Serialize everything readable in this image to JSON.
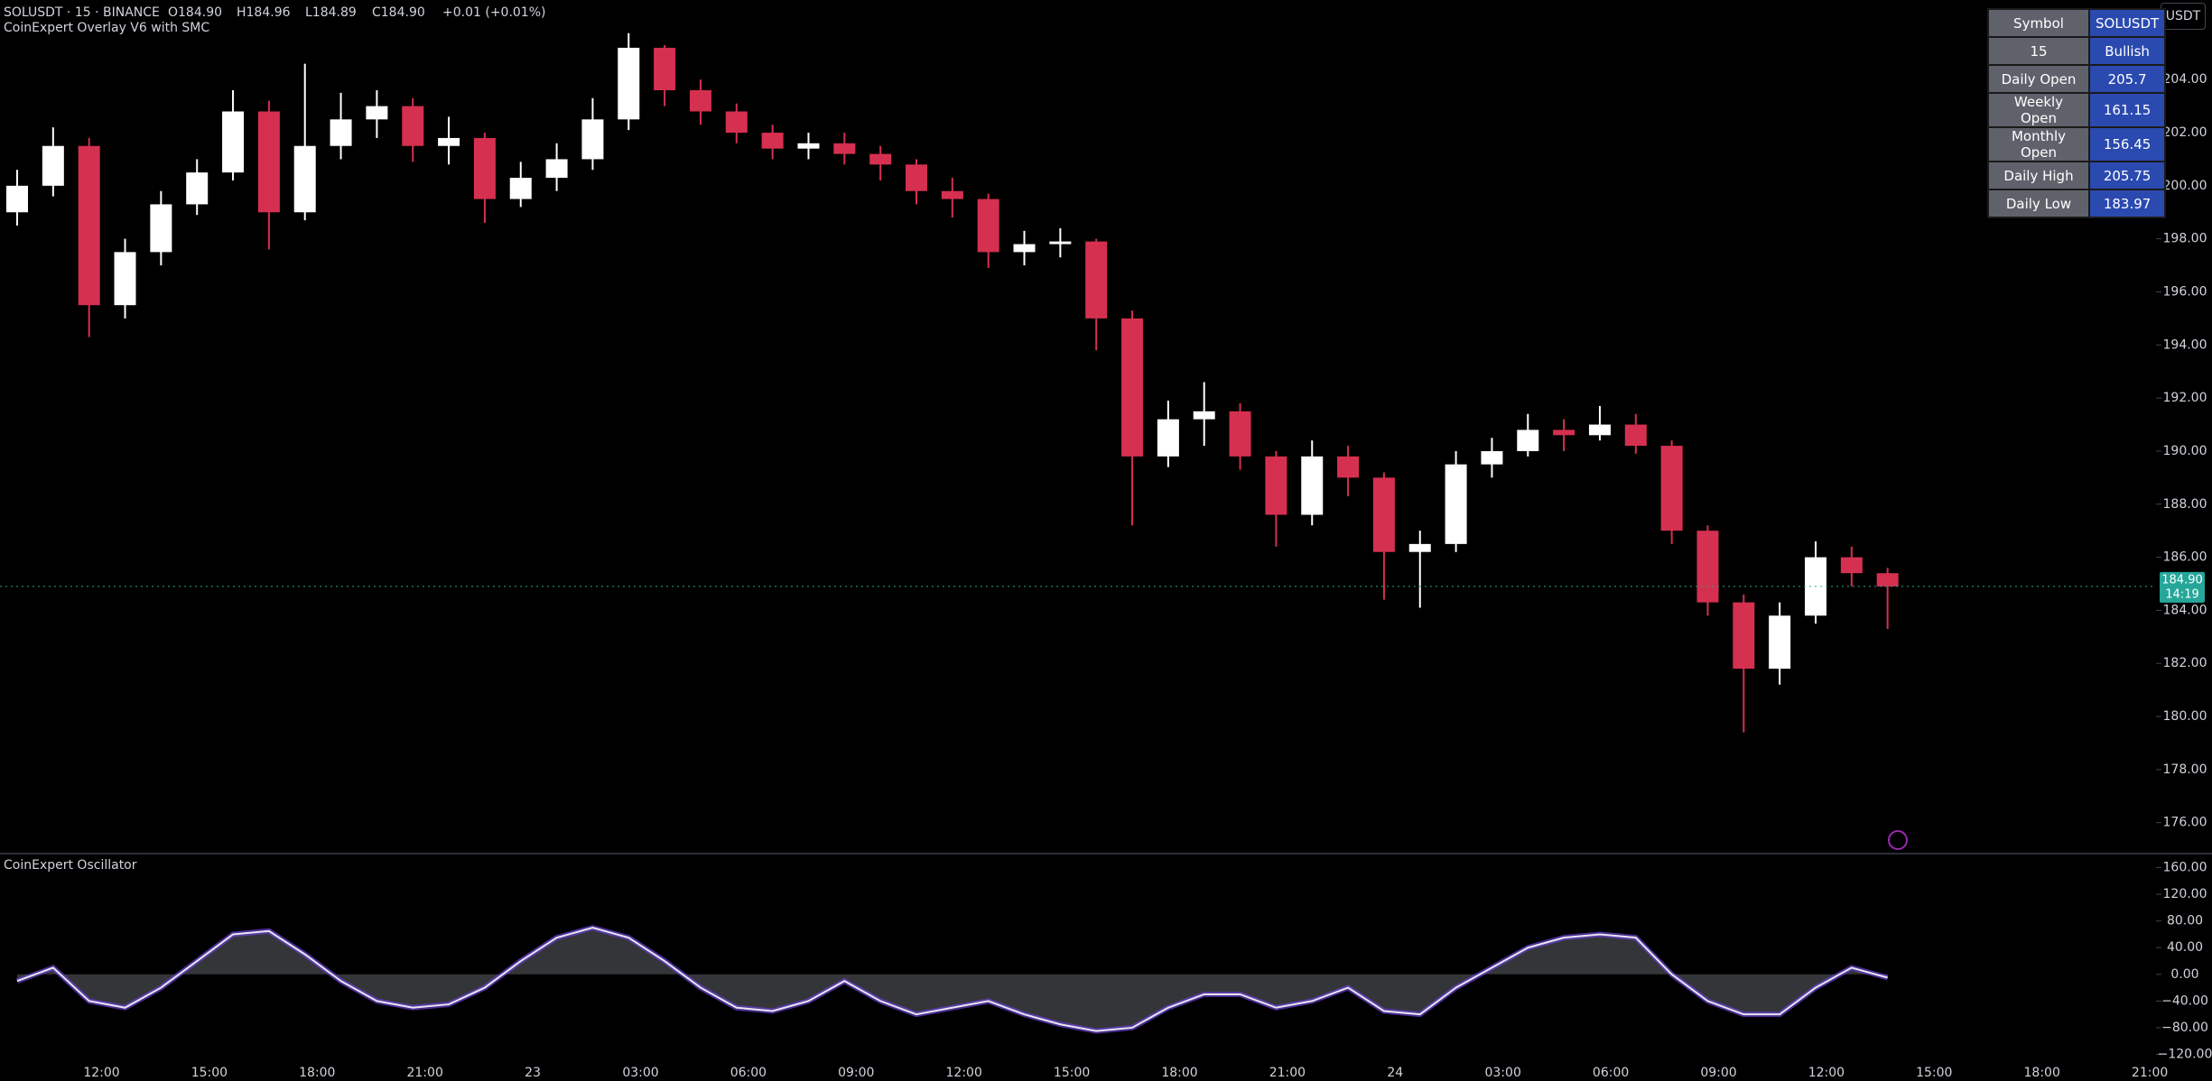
{
  "header": {
    "symbol": "SOLUSDT · 15 · BINANCE",
    "open": "O184.90",
    "high": "H184.96",
    "low": "L184.89",
    "close": "C184.90",
    "change": "+0.01 (+0.01%)",
    "overlay_name": "CoinExpert Overlay V6 with SMC",
    "oscillator_name": "CoinExpert Oscillator",
    "currency_button": "USDT",
    "price_tag": "184.90",
    "countdown": "14:19"
  },
  "table": {
    "rows": [
      [
        "Symbol",
        "SOLUSDT"
      ],
      [
        "15",
        "Bullish"
      ],
      [
        "Daily Open",
        "205.7"
      ],
      [
        "Weekly Open",
        "161.15"
      ],
      [
        "Monthly Open",
        "156.45"
      ],
      [
        "Daily High",
        "205.75"
      ],
      [
        "Daily Low",
        "183.97"
      ]
    ]
  },
  "chart_data": [
    {
      "type": "candlestick",
      "up_color": "#ffffff",
      "down_color": "#d5304f",
      "open": [
        199.0,
        200.0,
        201.5,
        195.5,
        197.5,
        199.3,
        200.5,
        202.8,
        199.0,
        201.5,
        202.5,
        203.0,
        201.5,
        201.8,
        199.5,
        200.3,
        201.0,
        202.5,
        205.2,
        203.6,
        202.8,
        202.0,
        201.4,
        201.6,
        201.2,
        200.8,
        199.8,
        199.5,
        197.5,
        197.8,
        197.9,
        195.0,
        189.8,
        191.2,
        191.5,
        189.8,
        187.6,
        189.8,
        189.0,
        186.2,
        186.5,
        189.5,
        190.0,
        190.8,
        190.6,
        191.0,
        190.2,
        187.0,
        184.3,
        181.8,
        183.8,
        186.0,
        185.4
      ],
      "high": [
        200.6,
        202.2,
        201.8,
        198.0,
        199.8,
        201.0,
        203.6,
        203.2,
        204.6,
        203.5,
        203.6,
        203.3,
        202.6,
        202.0,
        200.9,
        201.6,
        203.3,
        205.75,
        205.3,
        204.0,
        203.1,
        202.3,
        202.0,
        202.0,
        201.5,
        201.0,
        200.3,
        199.7,
        198.3,
        198.4,
        198.0,
        195.3,
        191.9,
        192.6,
        191.8,
        190.0,
        190.4,
        190.2,
        189.2,
        187.0,
        190.0,
        190.5,
        191.4,
        191.2,
        191.7,
        191.4,
        190.4,
        187.2,
        184.6,
        184.3,
        186.6,
        186.4,
        185.6
      ],
      "low": [
        198.5,
        199.6,
        194.3,
        195.0,
        197.0,
        198.9,
        200.2,
        197.6,
        198.7,
        201.0,
        201.8,
        200.9,
        200.8,
        198.6,
        199.2,
        199.8,
        200.6,
        202.1,
        203.0,
        202.3,
        201.6,
        201.0,
        201.0,
        200.8,
        200.2,
        199.3,
        198.8,
        196.9,
        197.0,
        197.3,
        193.8,
        187.2,
        189.4,
        190.2,
        189.3,
        186.4,
        187.2,
        188.3,
        184.4,
        184.1,
        186.2,
        189.0,
        189.8,
        190.0,
        190.4,
        189.9,
        186.5,
        183.8,
        179.4,
        181.2,
        183.5,
        184.9,
        183.3
      ],
      "close": [
        200.0,
        201.5,
        195.5,
        197.5,
        199.3,
        200.5,
        202.8,
        199.0,
        201.5,
        202.5,
        203.0,
        201.5,
        201.8,
        199.5,
        200.3,
        201.0,
        202.5,
        205.2,
        203.6,
        202.8,
        202.0,
        201.4,
        201.6,
        201.2,
        200.8,
        199.8,
        199.5,
        197.5,
        197.8,
        197.9,
        195.0,
        189.8,
        191.2,
        191.5,
        189.8,
        187.6,
        189.8,
        189.0,
        186.2,
        186.5,
        189.5,
        190.0,
        190.8,
        190.6,
        191.0,
        190.2,
        187.0,
        184.3,
        181.8,
        183.8,
        186.0,
        185.4,
        184.9
      ],
      "ylim": [
        174.9,
        207.0
      ],
      "yticks": [
        {
          "value": 176,
          "label": "176.00"
        },
        {
          "value": 178,
          "label": "178.00"
        },
        {
          "value": 180,
          "label": "180.00"
        },
        {
          "value": 182,
          "label": "182.00"
        },
        {
          "value": 184,
          "label": "184.00"
        },
        {
          "value": 186,
          "label": "186.00"
        },
        {
          "value": 188,
          "label": "188.00"
        },
        {
          "value": 190,
          "label": "190.00"
        },
        {
          "value": 192,
          "label": "192.00"
        },
        {
          "value": 194,
          "label": "194.00"
        },
        {
          "value": 196,
          "label": "196.00"
        },
        {
          "value": 198,
          "label": "198.00"
        },
        {
          "value": 200,
          "label": "200.00"
        },
        {
          "value": 202,
          "label": "202.00"
        },
        {
          "value": 204,
          "label": "204.00"
        }
      ],
      "last_price": 184.9,
      "x_labels": [
        "12:00",
        "15:00",
        "18:00",
        "21:00",
        "23",
        "03:00",
        "06:00",
        "09:00",
        "12:00",
        "15:00",
        "18:00",
        "21:00",
        "24",
        "03:00",
        "06:00",
        "09:00",
        "12:00",
        "15:00",
        "18:00",
        "21:00"
      ]
    },
    {
      "type": "line",
      "color": "#e6e6f0",
      "values": [
        -10,
        10,
        -40,
        -50,
        -20,
        20,
        60,
        65,
        30,
        -10,
        -40,
        -50,
        -45,
        -20,
        20,
        55,
        70,
        55,
        20,
        -20,
        -50,
        -55,
        -40,
        -10,
        -40,
        -60,
        -50,
        -40,
        -60,
        -75,
        -85,
        -80,
        -50,
        -30,
        -30,
        -50,
        -40,
        -20,
        -55,
        -60,
        -20,
        10,
        40,
        55,
        60,
        55,
        0,
        -40,
        -60,
        -60,
        -20,
        10,
        -5
      ],
      "ylim": [
        -122,
        181
      ],
      "yticks": [
        {
          "value": 160,
          "label": "160.00"
        },
        {
          "value": 120,
          "label": "120.00"
        },
        {
          "value": 80,
          "label": "80.00"
        },
        {
          "value": 40,
          "label": "40.00"
        },
        {
          "value": 0,
          "label": "0.00"
        },
        {
          "value": -40,
          "label": "−40.00"
        },
        {
          "value": -80,
          "label": "−80.00"
        },
        {
          "value": -120,
          "label": "−120.00"
        }
      ]
    }
  ]
}
